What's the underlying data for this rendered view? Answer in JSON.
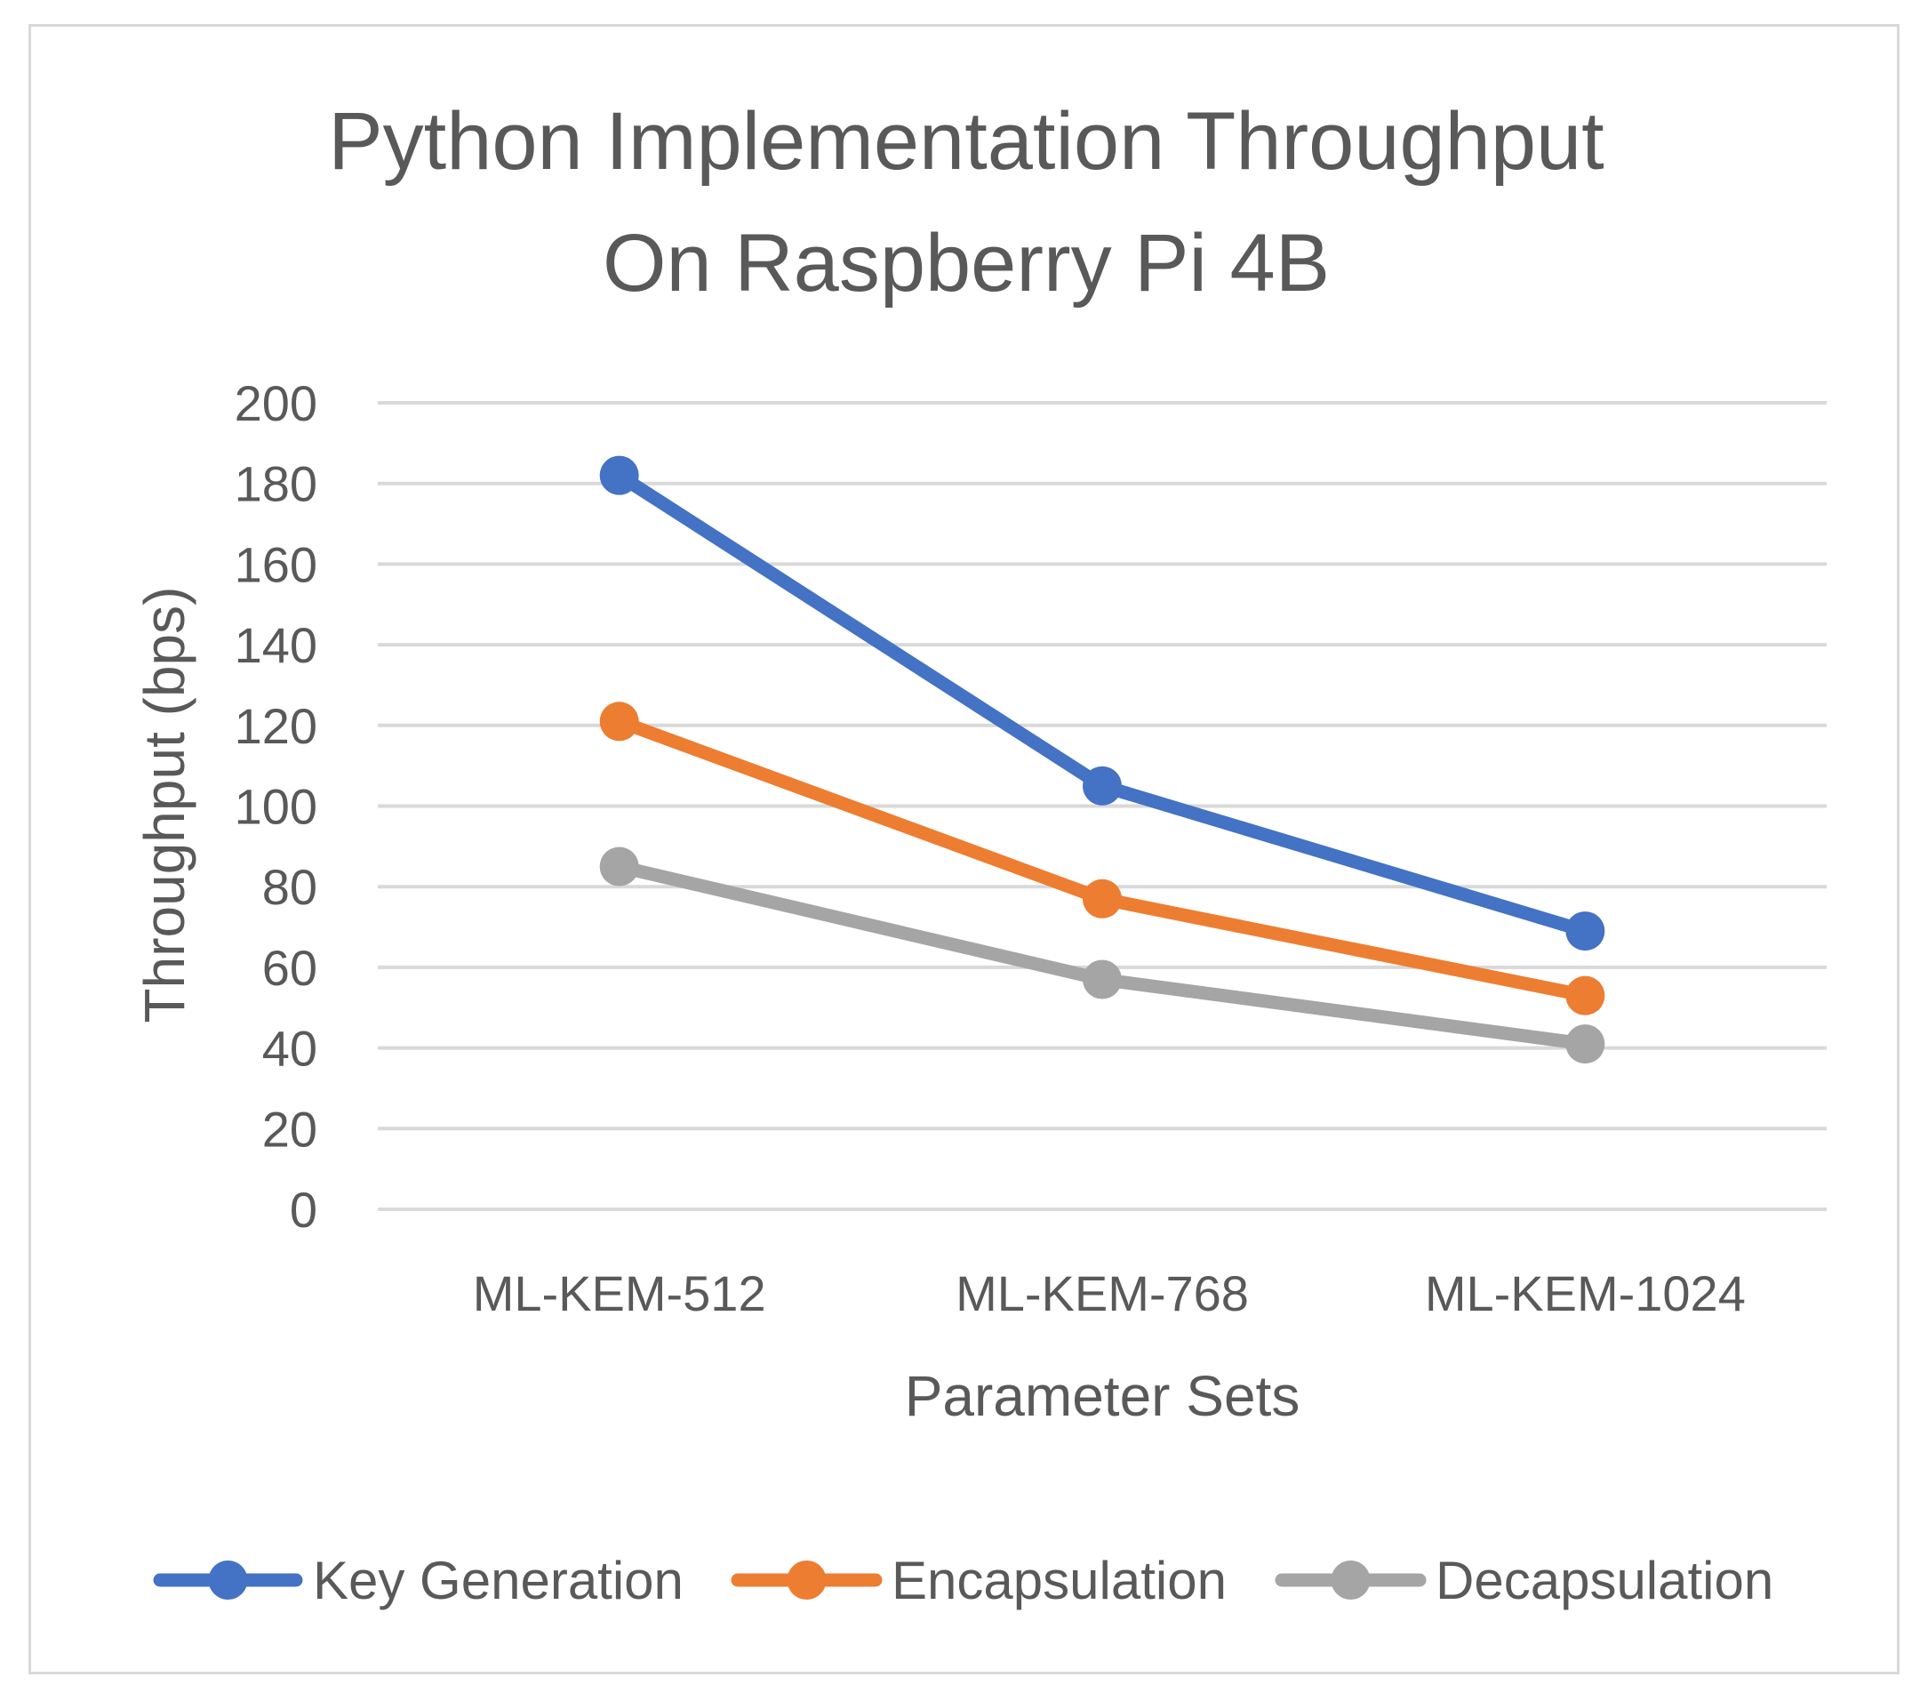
{
  "chart_data": {
    "type": "line",
    "title_lines": [
      "Python Implementation Throughput",
      "On Raspberry Pi 4B"
    ],
    "xlabel": "Parameter Sets",
    "ylabel": "Throughput (bps)",
    "categories": [
      "ML-KEM-512",
      "ML-KEM-768",
      "ML-KEM-1024"
    ],
    "ylim": [
      0,
      200
    ],
    "yticks": [
      0,
      20,
      40,
      60,
      80,
      100,
      120,
      140,
      160,
      180,
      200
    ],
    "grid": true,
    "legend_position": "bottom",
    "series": [
      {
        "name": "Key Generation",
        "color": "#4472c4",
        "values": [
          182,
          105,
          69
        ]
      },
      {
        "name": "Encapsulation",
        "color": "#ed7d31",
        "values": [
          121,
          77,
          53
        ]
      },
      {
        "name": "Decapsulation",
        "color": "#a5a5a5",
        "values": [
          85,
          57,
          41
        ]
      }
    ]
  }
}
